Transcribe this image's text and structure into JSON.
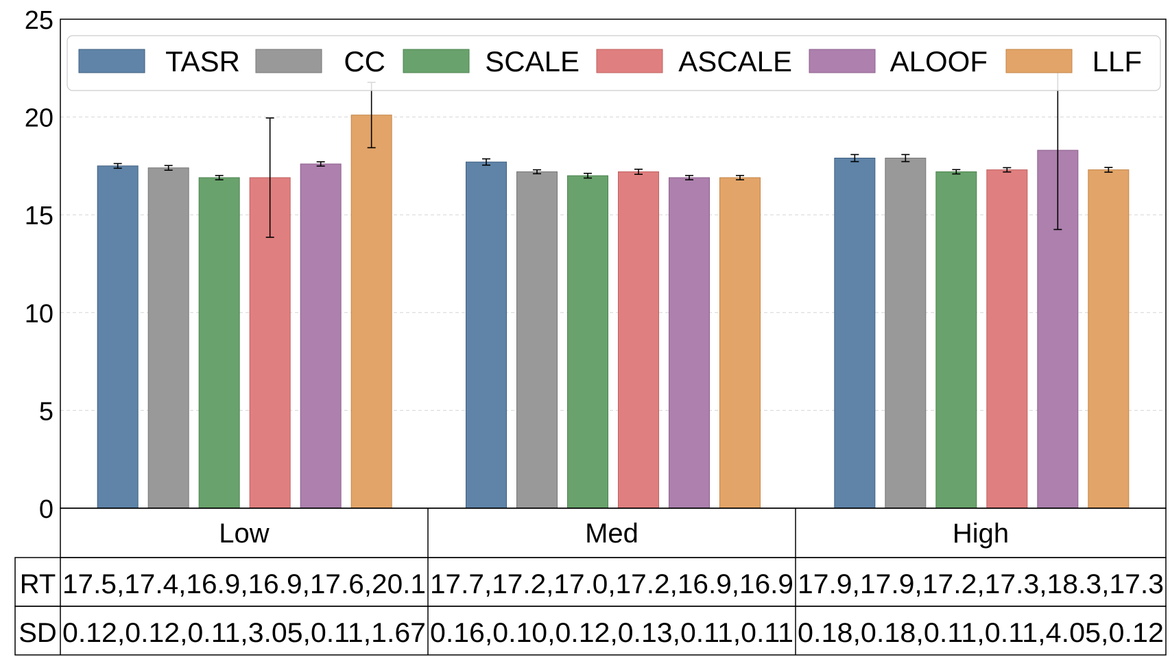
{
  "chart_data": {
    "type": "bar",
    "categories": [
      "Low",
      "Med",
      "High"
    ],
    "ylim": [
      0,
      25
    ],
    "yticks": [
      "0",
      "5",
      "10",
      "15",
      "20",
      "25"
    ],
    "grid": true,
    "legend_placement": "top",
    "series": [
      {
        "name": "TASR",
        "color": "#5f84a8",
        "edge": "#3f5f80",
        "values": [
          17.5,
          17.7,
          17.9
        ],
        "errors": [
          0.12,
          0.16,
          0.18
        ]
      },
      {
        "name": "CC",
        "color": "#999999",
        "edge": "#777777",
        "values": [
          17.4,
          17.2,
          17.9
        ],
        "errors": [
          0.12,
          0.1,
          0.18
        ]
      },
      {
        "name": "SCALE",
        "color": "#69a26c",
        "edge": "#4d8450",
        "values": [
          16.9,
          17.0,
          17.2
        ],
        "errors": [
          0.11,
          0.12,
          0.11
        ]
      },
      {
        "name": "ASCALE",
        "color": "#e07f7f",
        "edge": "#c06060",
        "values": [
          16.9,
          17.2,
          17.3
        ],
        "errors": [
          3.05,
          0.13,
          0.11
        ]
      },
      {
        "name": "ALOOF",
        "color": "#ad80ad",
        "edge": "#8e608e",
        "values": [
          17.6,
          16.9,
          18.3
        ],
        "errors": [
          0.11,
          0.11,
          4.05
        ]
      },
      {
        "name": "LLF",
        "color": "#e2a468",
        "edge": "#c48548",
        "values": [
          20.1,
          16.9,
          17.3
        ],
        "errors": [
          1.67,
          0.11,
          0.12
        ]
      }
    ],
    "table": {
      "rows": [
        {
          "label": "RT",
          "cells": [
            "17.5,17.4,16.9,16.9,17.6,20.1",
            "17.7,17.2,17.0,17.2,16.9,16.9",
            "17.9,17.9,17.2,17.3,18.3,17.3"
          ]
        },
        {
          "label": "SD",
          "cells": [
            "0.12,0.12,0.11,3.05,0.11,1.67",
            "0.16,0.10,0.12,0.13,0.11,0.11",
            "0.18,0.18,0.11,0.11,4.05,0.12"
          ]
        }
      ]
    }
  }
}
